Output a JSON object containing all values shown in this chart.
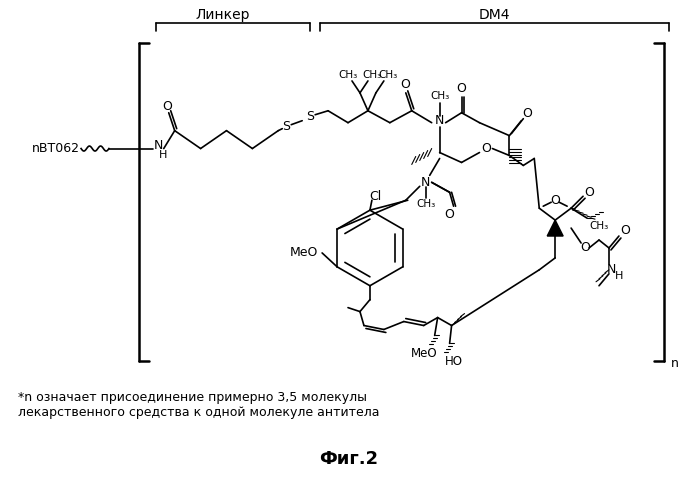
{
  "title": "Фиг.2",
  "label_linker": "Линкер",
  "label_dm4": "DM4",
  "label_nbt": "nBT062",
  "footnote_line1": "*n означает присоединение примерно 3,5 молекулы",
  "footnote_line2": "лекарственного средства к одной молекуле антитела",
  "label_n": "n",
  "bg_color": "#ffffff",
  "text_color": "#000000"
}
